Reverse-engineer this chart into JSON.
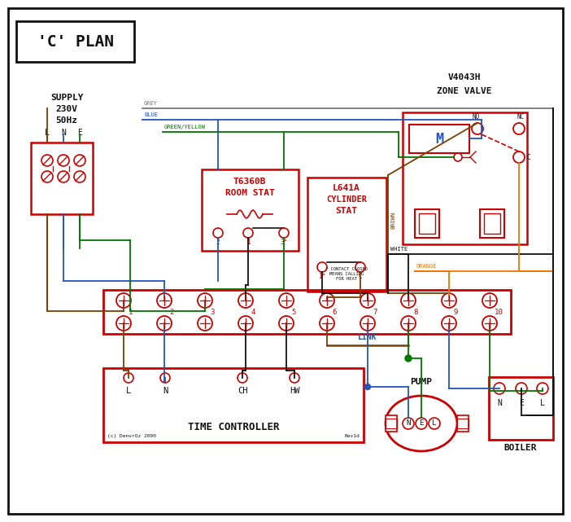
{
  "title": "'C' PLAN",
  "RED": "#cc0000",
  "BLUE": "#2255bb",
  "GREEN": "#007700",
  "GREY": "#777777",
  "BROWN": "#7B3F00",
  "ORANGE": "#EE7700",
  "BLACK": "#111111",
  "BG": "#ffffff",
  "terminal_labels": [
    "1",
    "2",
    "3",
    "4",
    "5",
    "6",
    "7",
    "8",
    "9",
    "10"
  ],
  "tc_labels": [
    "L",
    "N",
    "CH",
    "HW"
  ],
  "pump_nel": [
    "N",
    "E",
    "L"
  ],
  "boiler_nel": [
    "N",
    "E",
    "L"
  ],
  "copyright": "(c) DenvrOz 2000",
  "rev": "Rev1d"
}
